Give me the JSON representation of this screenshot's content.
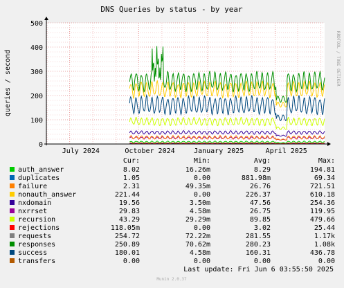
{
  "title": "DNS Queries by status - by year",
  "watermark": "RRDTOOL / TOBI OETIKER",
  "footer": "Munin 2.0.37",
  "last_update": "Last update: Fri Jun  6 03:55:50 2025",
  "legend": {
    "headers": [
      "Cur:",
      "Min:",
      "Avg:",
      "Max:"
    ],
    "rows": [
      {
        "name": "auth_answer",
        "color": "#00cc00",
        "cur": "8.02",
        "min": "16.26m",
        "avg": "8.29",
        "max": "194.81"
      },
      {
        "name": "duplicates",
        "color": "#0066b3",
        "cur": "1.05",
        "min": "0.00",
        "avg": "881.98m",
        "max": "69.34"
      },
      {
        "name": "failure",
        "color": "#ff8000",
        "cur": "2.31",
        "min": "49.35m",
        "avg": "26.76",
        "max": "721.51"
      },
      {
        "name": "nonauth_answer",
        "color": "#ffcc00",
        "cur": "221.44",
        "min": "0.00",
        "avg": "226.37",
        "max": "610.18"
      },
      {
        "name": "nxdomain",
        "color": "#330099",
        "cur": "19.56",
        "min": "3.50m",
        "avg": "47.56",
        "max": "254.36"
      },
      {
        "name": "nxrrset",
        "color": "#990099",
        "cur": "29.83",
        "min": "4.58m",
        "avg": "26.75",
        "max": "119.95"
      },
      {
        "name": "recursion",
        "color": "#ccff00",
        "cur": "43.29",
        "min": "29.29m",
        "avg": "89.85",
        "max": "479.66"
      },
      {
        "name": "rejections",
        "color": "#ff0000",
        "cur": "118.05m",
        "min": "0.00",
        "avg": "3.02",
        "max": "25.44"
      },
      {
        "name": "requests",
        "color": "#808080",
        "cur": "254.72",
        "min": "72.22m",
        "avg": "281.55",
        "max": "1.17k"
      },
      {
        "name": "responses",
        "color": "#008f00",
        "cur": "250.89",
        "min": "70.62m",
        "avg": "280.23",
        "max": "1.08k"
      },
      {
        "name": "success",
        "color": "#00487d",
        "cur": "180.01",
        "min": "4.58m",
        "avg": "160.31",
        "max": "436.78"
      },
      {
        "name": "transfers",
        "color": "#b35a00",
        "cur": "0.00",
        "min": "0.00",
        "avg": "0.00",
        "max": "0.00"
      }
    ]
  },
  "chart_data": {
    "type": "line",
    "title": "DNS Queries by status - by year",
    "ylabel": "queries / second",
    "ylim": [
      0,
      500
    ],
    "yticks": [
      0,
      100,
      200,
      300,
      400,
      500
    ],
    "x_range": [
      "2024-05-31",
      "2025-06-06"
    ],
    "xticks": [
      "July 2024",
      "October 2024",
      "January 2025",
      "April 2025"
    ],
    "data_start": "2024-09-19",
    "approx_series_levels": [
      {
        "name": "responses",
        "color": "#008f00",
        "low": 215,
        "high": 300
      },
      {
        "name": "nonauth_answer",
        "color": "#ffcc00",
        "low": 190,
        "high": 260
      },
      {
        "name": "success",
        "color": "#00487d",
        "low": 120,
        "high": 200
      },
      {
        "name": "recursion",
        "color": "#ccff00",
        "low": 75,
        "high": 110
      },
      {
        "name": "nxdomain",
        "color": "#330099",
        "low": 40,
        "high": 55
      },
      {
        "name": "failure",
        "color": "#ff8000",
        "low": 20,
        "high": 35
      },
      {
        "name": "nxrrset",
        "color": "#990099",
        "low": 20,
        "high": 30
      },
      {
        "name": "auth_answer",
        "color": "#00cc00",
        "low": 5,
        "high": 12
      },
      {
        "name": "rejections",
        "color": "#ff0000",
        "low": 1,
        "high": 5
      },
      {
        "name": "duplicates",
        "color": "#0066b3",
        "low": 0,
        "high": 2
      }
    ],
    "grid": true
  }
}
